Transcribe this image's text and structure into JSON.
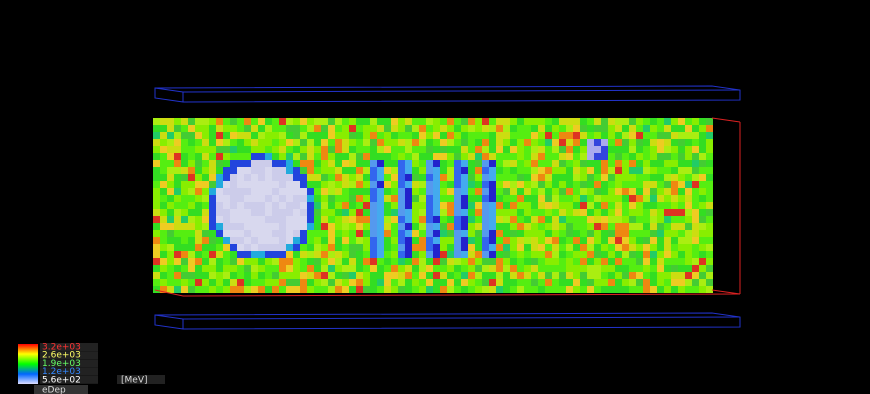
{
  "legend": {
    "labels": [
      "3.2e+03",
      "2.6e+03",
      "1.9e+03",
      "1.2e+03",
      "5.6e+02"
    ],
    "unit": "[MeV]",
    "quantity": "eDep"
  }
}
